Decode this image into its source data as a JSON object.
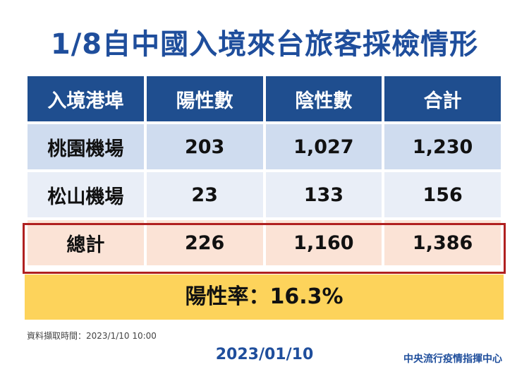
{
  "title": "1/8自中國入境來台旅客採檢情形",
  "table": {
    "headers": [
      "入境港埠",
      "陽性數",
      "陰性數",
      "合計"
    ],
    "rows": [
      [
        "桃園機場",
        "203",
        "1,027",
        "1,230"
      ],
      [
        "松山機場",
        "23",
        "133",
        "156"
      ],
      [
        "總計",
        "226",
        "1,160",
        "1,386"
      ]
    ]
  },
  "positive_rate": "陽性率：16.3%",
  "source_note": "資料擷取時間：2023/1/10 10:00",
  "date": "2023/01/10",
  "organization": "中央流行疫情指揮中心"
}
